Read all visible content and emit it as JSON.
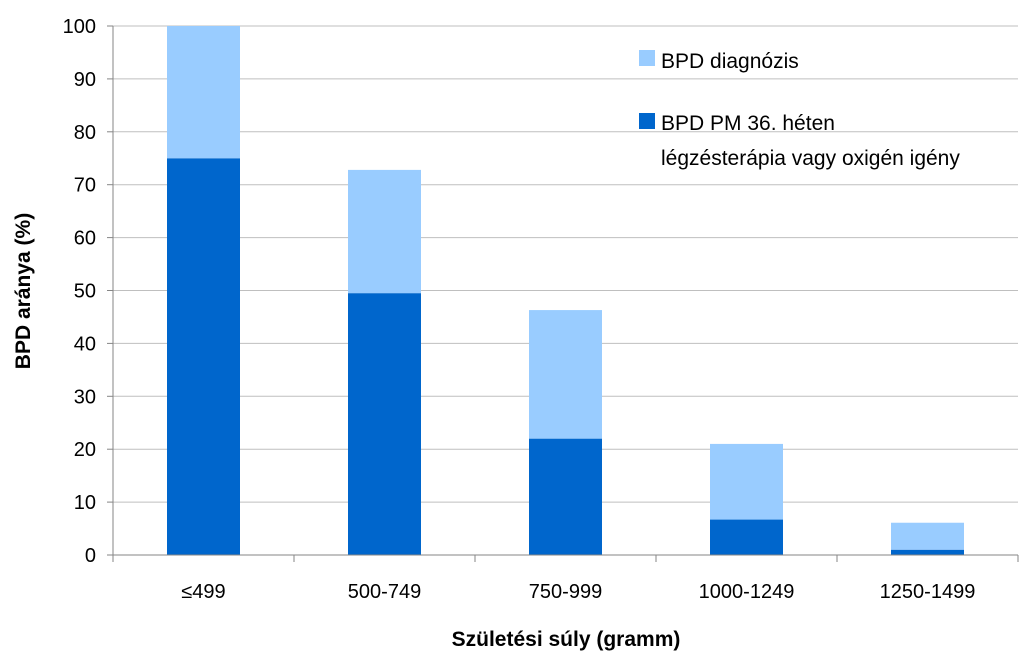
{
  "chart_data": {
    "type": "bar",
    "stacked": true,
    "categories": [
      "≤499",
      "500-749",
      "750-999",
      "1000-1249",
      "1250-1499"
    ],
    "series": [
      {
        "name": "BPD PM 36. héten légzésterápia vagy oxigén igény",
        "legend_lines": [
          "BPD PM 36. héten",
          "légzésterápia vagy oxigén igény"
        ],
        "values": [
          75,
          49.5,
          22,
          6.7,
          1
        ],
        "color": "#0066CC"
      },
      {
        "name": "BPD diagnózis",
        "legend_lines": [
          "BPD diagnózis"
        ],
        "values": [
          25,
          23.3,
          24.3,
          14.3,
          5.1
        ],
        "color": "#99CCFF"
      }
    ],
    "totals": [
      100,
      72.8,
      46.3,
      21,
      6.1
    ],
    "xlabel": "Születési súly (gramm)",
    "ylabel": "BPD aránya (%)",
    "ylim": [
      0,
      100
    ],
    "yticks": [
      0,
      10,
      20,
      30,
      40,
      50,
      60,
      70,
      80,
      90,
      100
    ],
    "grid": true,
    "legend": "top-right"
  }
}
